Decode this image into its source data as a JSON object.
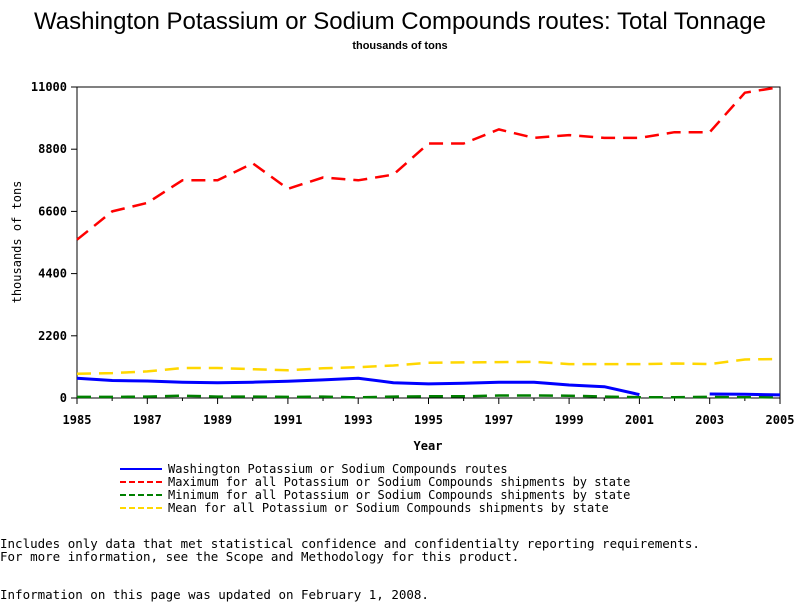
{
  "page": {
    "title": "Washington Potassium or Sodium Compounds routes: Total Tonnage",
    "subtitle": "thousands of tons"
  },
  "chart_data": {
    "type": "line",
    "xlabel": "Year",
    "ylabel": "thousands of tons",
    "xlim": [
      1985,
      2005
    ],
    "ylim": [
      0,
      11000
    ],
    "x_ticks": [
      1985,
      1987,
      1989,
      1991,
      1993,
      1995,
      1997,
      1999,
      2001,
      2003,
      2005
    ],
    "y_ticks": [
      0,
      2200,
      4400,
      6600,
      8800,
      11000
    ],
    "grid": false,
    "legend_position": "bottom",
    "series": [
      {
        "name": "Washington Potassium or Sodium Compounds routes",
        "color": "#0000ff",
        "style": "solid",
        "points": [
          [
            1985,
            700
          ],
          [
            1986,
            620
          ],
          [
            1987,
            600
          ],
          [
            1988,
            560
          ],
          [
            1989,
            540
          ],
          [
            1990,
            560
          ],
          [
            1991,
            590
          ],
          [
            1992,
            640
          ],
          [
            1993,
            700
          ],
          [
            1994,
            540
          ],
          [
            1995,
            500
          ],
          [
            1996,
            520
          ],
          [
            1997,
            560
          ],
          [
            1998,
            560
          ],
          [
            1999,
            460
          ],
          [
            2000,
            400
          ],
          [
            2001,
            120
          ],
          [
            2003,
            140
          ],
          [
            2004,
            130
          ],
          [
            2005,
            110
          ]
        ],
        "breaks_after": [
          2001
        ]
      },
      {
        "name": "Maximum for all Potassium or Sodium Compounds shipments by state",
        "color": "#ff0000",
        "style": "dashed",
        "points": [
          [
            1985,
            5600
          ],
          [
            1986,
            6600
          ],
          [
            1987,
            6900
          ],
          [
            1988,
            7700
          ],
          [
            1989,
            7700
          ],
          [
            1990,
            8300
          ],
          [
            1991,
            7400
          ],
          [
            1992,
            7800
          ],
          [
            1993,
            7700
          ],
          [
            1994,
            7900
          ],
          [
            1995,
            9000
          ],
          [
            1996,
            9000
          ],
          [
            1997,
            9500
          ],
          [
            1998,
            9200
          ],
          [
            1999,
            9300
          ],
          [
            2000,
            9200
          ],
          [
            2001,
            9200
          ],
          [
            2002,
            9400
          ],
          [
            2003,
            9400
          ],
          [
            2004,
            10800
          ],
          [
            2005,
            11000
          ]
        ]
      },
      {
        "name": "Minimum for all Potassium or Sodium Compounds shipments by state",
        "color": "#008000",
        "style": "dashed",
        "points": [
          [
            1985,
            40
          ],
          [
            1986,
            40
          ],
          [
            1987,
            50
          ],
          [
            1988,
            80
          ],
          [
            1989,
            50
          ],
          [
            1990,
            50
          ],
          [
            1991,
            40
          ],
          [
            1992,
            50
          ],
          [
            1993,
            20
          ],
          [
            1994,
            50
          ],
          [
            1995,
            60
          ],
          [
            1996,
            60
          ],
          [
            1997,
            90
          ],
          [
            1998,
            90
          ],
          [
            1999,
            80
          ],
          [
            2000,
            50
          ],
          [
            2001,
            30
          ],
          [
            2002,
            30
          ],
          [
            2003,
            40
          ],
          [
            2004,
            30
          ],
          [
            2005,
            20
          ]
        ]
      },
      {
        "name": "Mean for all Potassium or Sodium Compounds shipments by state",
        "color": "#ffd700",
        "style": "dashed",
        "points": [
          [
            1985,
            860
          ],
          [
            1986,
            880
          ],
          [
            1987,
            940
          ],
          [
            1988,
            1060
          ],
          [
            1989,
            1060
          ],
          [
            1990,
            1020
          ],
          [
            1991,
            980
          ],
          [
            1992,
            1050
          ],
          [
            1993,
            1090
          ],
          [
            1994,
            1150
          ],
          [
            1995,
            1250
          ],
          [
            1996,
            1260
          ],
          [
            1997,
            1270
          ],
          [
            1998,
            1280
          ],
          [
            1999,
            1200
          ],
          [
            2000,
            1200
          ],
          [
            2001,
            1200
          ],
          [
            2002,
            1220
          ],
          [
            2003,
            1200
          ],
          [
            2004,
            1360
          ],
          [
            2005,
            1380
          ]
        ]
      }
    ]
  },
  "footnotes": {
    "line1": "Includes only data that met statistical confidence and confidentialty reporting requirements.",
    "line2": "For more information, see the Scope and Methodology for this product.",
    "line3": "Information on this page was updated on February 1, 2008."
  }
}
